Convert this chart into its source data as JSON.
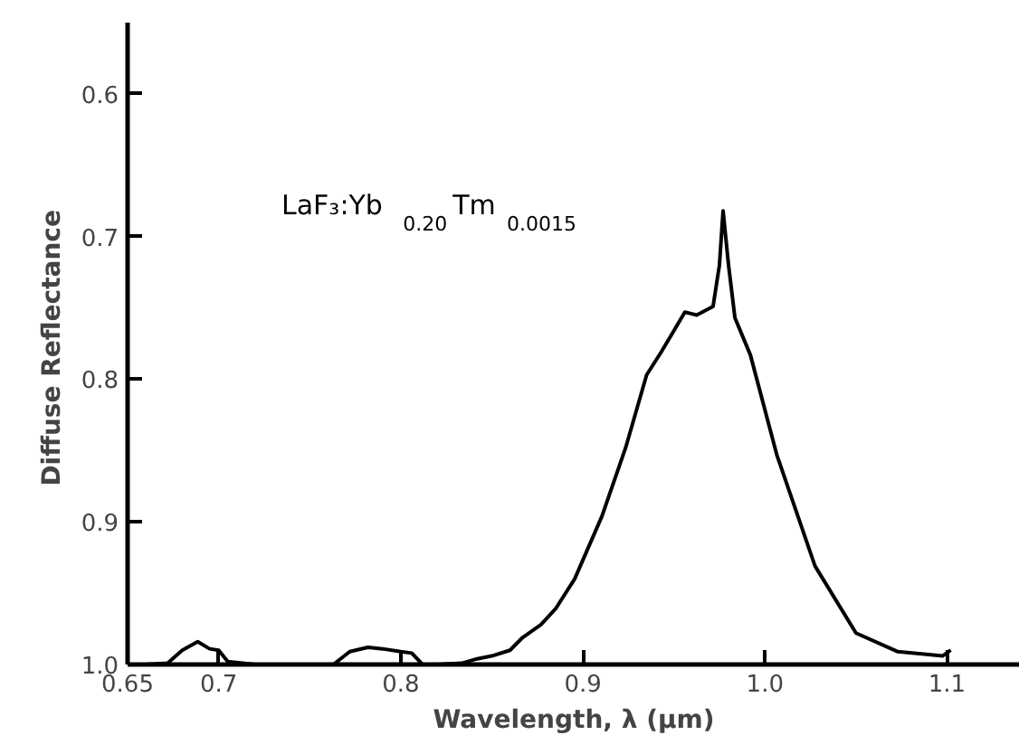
{
  "chart_data": {
    "type": "line",
    "xlabel": "Wavelength, λ (μm)",
    "ylabel": "Diffuse  Reflectance",
    "annotations": [
      "LaF₃:Yb$_{0.20}$ Tm$_{0.0015}$"
    ],
    "xlim": [
      0.65,
      1.14
    ],
    "ylim": [
      1.0,
      0.55
    ],
    "xticks": [
      0.65,
      0.7,
      0.8,
      0.9,
      {
        "value": 1.0,
        "label": "1.0"
      },
      1.1
    ],
    "yticks": [
      0.6,
      0.7,
      0.8,
      0.9,
      {
        "value": 1.0,
        "label": "1.0"
      }
    ],
    "grid": false,
    "marker": "none",
    "line_style": "solid",
    "series": [
      {
        "color": "#000000",
        "x": [
          0.66,
          0.672,
          0.68,
          0.6885,
          0.695,
          0.7,
          0.705,
          0.72,
          0.763,
          0.772,
          0.782,
          0.79,
          0.8,
          0.806,
          0.812,
          0.82,
          0.834,
          0.842,
          0.85,
          0.86,
          0.867,
          0.877,
          0.885,
          0.8955,
          0.9105,
          0.9235,
          0.935,
          0.943,
          0.95,
          0.956,
          0.9625,
          0.9715,
          0.975,
          0.977,
          0.98,
          0.9835,
          0.992,
          1.0065,
          1.0275,
          1.05,
          1.073,
          1.0975,
          1.102
        ],
        "values": [
          1.0,
          0.999,
          0.99,
          0.984,
          0.989,
          0.99,
          0.998,
          1.0,
          1.0,
          0.991,
          0.988,
          0.989,
          0.991,
          0.992,
          1.0,
          1.0,
          0.999,
          0.996,
          0.994,
          0.99,
          0.981,
          0.972,
          0.961,
          0.94,
          0.896,
          0.848,
          0.797,
          0.781,
          0.766,
          0.753,
          0.755,
          0.749,
          0.72,
          0.682,
          0.72,
          0.757,
          0.783,
          0.853,
          0.931,
          0.978,
          0.991,
          0.994,
          0.99
        ]
      }
    ]
  }
}
